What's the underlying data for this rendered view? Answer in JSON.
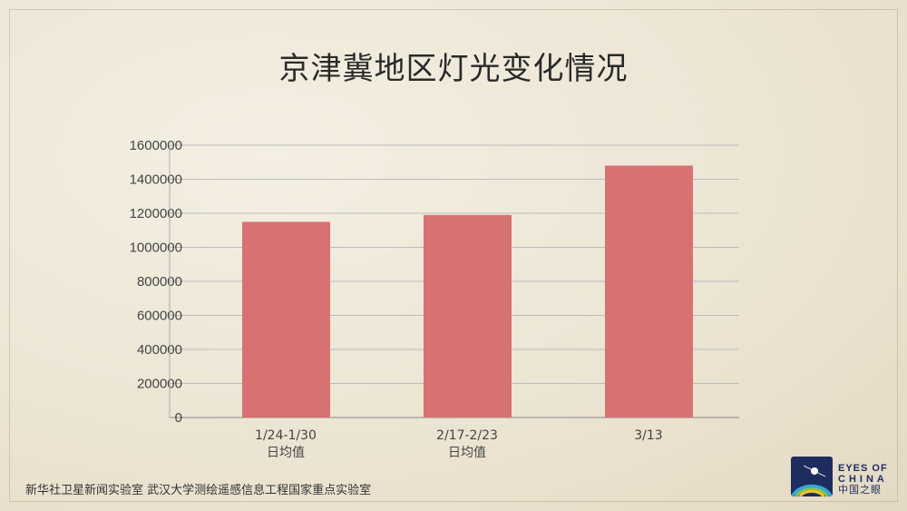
{
  "chart_data": {
    "type": "bar",
    "title": "京津冀地区灯光变化情况",
    "categories": [
      [
        "1/24-1/30",
        "日均值"
      ],
      [
        "2/17-2/23",
        "日均值"
      ],
      [
        "3/13",
        ""
      ]
    ],
    "values": [
      1150000,
      1190000,
      1480000
    ],
    "ylim": [
      0,
      1600000
    ],
    "yticks": [
      "0",
      "200000",
      "400000",
      "600000",
      "800000",
      "1000000",
      "1200000",
      "1400000",
      "1600000"
    ],
    "grid": true,
    "bar_color": "#d87272"
  },
  "footer": "新华社卫星新闻实验室  武汉大学测绘遥感信息工程国家重点实验室",
  "logo": {
    "line1": "EYES OF",
    "line2": "CHINA",
    "line3": "中国之眼"
  }
}
